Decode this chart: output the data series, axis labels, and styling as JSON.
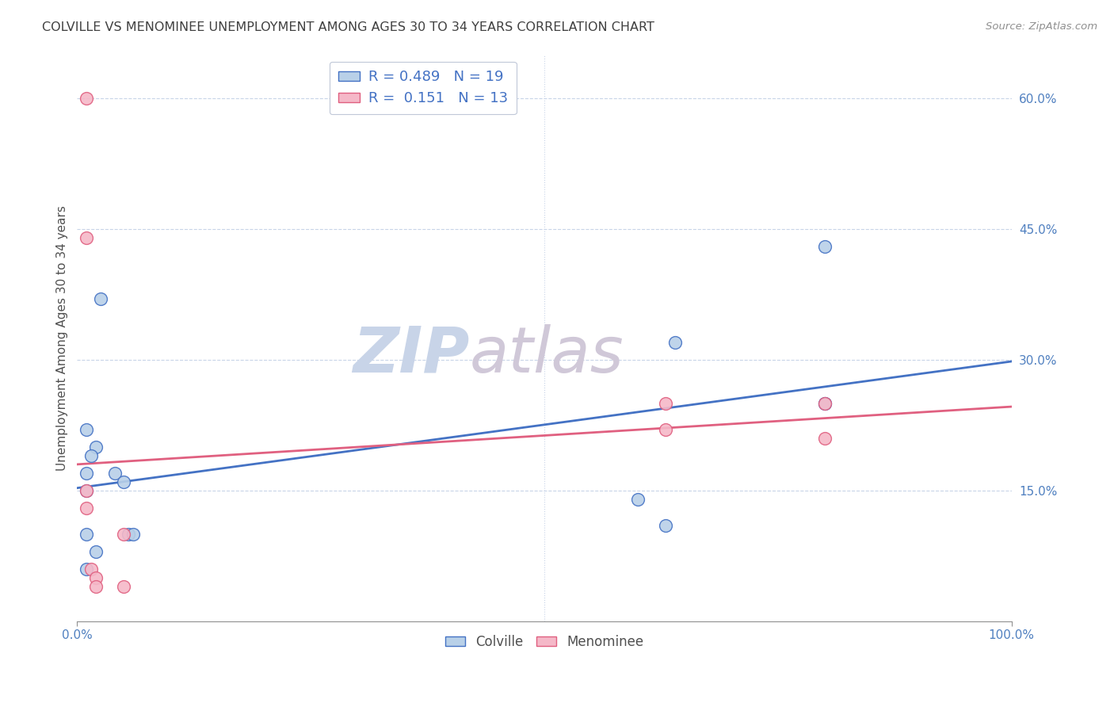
{
  "title": "COLVILLE VS MENOMINEE UNEMPLOYMENT AMONG AGES 30 TO 34 YEARS CORRELATION CHART",
  "source": "Source: ZipAtlas.com",
  "ylabel": "Unemployment Among Ages 30 to 34 years",
  "colville_R": 0.489,
  "colville_N": 19,
  "menominee_R": 0.151,
  "menominee_N": 13,
  "colville_color": "#b8d0e8",
  "menominee_color": "#f5b8c8",
  "colville_line_color": "#4472c4",
  "menominee_line_color": "#e06080",
  "title_color": "#404040",
  "axis_label_color": "#505050",
  "tick_label_color": "#5080c0",
  "grid_color": "#c8d4e8",
  "xlim": [
    0.0,
    100.0
  ],
  "ylim": [
    0.0,
    65.0
  ],
  "xticks_show": [
    0.0,
    100.0
  ],
  "xtick_mid": 50.0,
  "yticks": [
    15.0,
    30.0,
    45.0,
    60.0
  ],
  "colville_x": [
    2.0,
    2.5,
    4.0,
    1.0,
    1.5,
    1.0,
    1.0,
    1.0,
    2.0,
    1.0,
    5.0,
    5.5,
    6.0,
    60.0,
    63.0,
    64.0,
    80.0,
    80.0,
    80.0
  ],
  "colville_y": [
    20.0,
    37.0,
    17.0,
    22.0,
    19.0,
    17.0,
    15.0,
    10.0,
    8.0,
    6.0,
    16.0,
    10.0,
    10.0,
    14.0,
    11.0,
    32.0,
    25.0,
    43.0,
    25.0
  ],
  "menominee_x": [
    1.0,
    1.0,
    1.0,
    1.0,
    1.5,
    2.0,
    2.0,
    5.0,
    5.0,
    63.0,
    63.0,
    80.0,
    80.0
  ],
  "menominee_y": [
    60.0,
    44.0,
    15.0,
    13.0,
    6.0,
    5.0,
    4.0,
    10.0,
    4.0,
    25.0,
    22.0,
    25.0,
    21.0
  ],
  "marker_size": 130,
  "watermark_text1": "ZIP",
  "watermark_text2": "atlas",
  "watermark_color1": "#c8d4e8",
  "watermark_color2": "#d0c8d8",
  "background_color": "#ffffff",
  "legend_fontsize": 13,
  "title_fontsize": 11.5,
  "ylabel_fontsize": 11,
  "tick_fontsize": 11
}
